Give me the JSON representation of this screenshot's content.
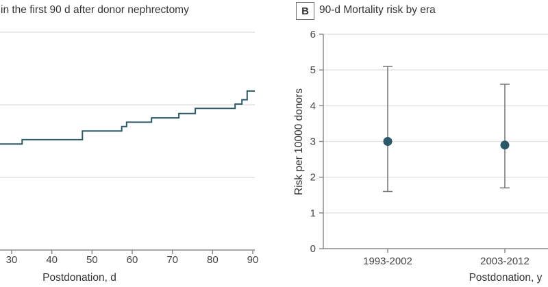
{
  "figure": {
    "panel_a": {
      "title": "in the first 90 d after donor nephrectomy",
      "xlabel": "Postdonation, d",
      "x_tick_labels": [
        "30",
        "40",
        "50",
        "60",
        "70",
        "80",
        "90"
      ]
    },
    "panel_b": {
      "badge": "B",
      "title": "90-d Mortality risk by era",
      "ylabel": "Risk per 10000 donors",
      "xlabel": "Postdonation, y",
      "y_tick_labels": [
        "0",
        "1",
        "2",
        "3",
        "4",
        "5",
        "6"
      ],
      "x_tick_labels": [
        "1993-2002",
        "2003-2012"
      ]
    }
  },
  "chart_data": [
    {
      "panel": "A",
      "type": "line",
      "subtype": "step",
      "title": "in the first 90 d after donor nephrectomy",
      "xlabel": "Postdonation, d",
      "x_ticks": [
        30,
        40,
        50,
        60,
        70,
        80,
        90
      ],
      "xlim_visible": [
        27.1,
        90.5
      ],
      "ylim_visible": [
        0,
        3.44
      ],
      "y_gridlines": [
        1,
        2,
        3
      ],
      "grid": true,
      "units": "cumulative deaths per 10000 donors (y-axis labels cropped off-screen left)",
      "steps_day_value": [
        [
          27.1,
          1.46
        ],
        [
          32.6,
          1.52
        ],
        [
          47.6,
          1.64
        ],
        [
          57.4,
          1.7
        ],
        [
          58.6,
          1.76
        ],
        [
          64.8,
          1.82
        ],
        [
          71.6,
          1.88
        ],
        [
          75.7,
          1.95
        ],
        [
          85.6,
          2.01
        ],
        [
          87.3,
          2.07
        ],
        [
          88.6,
          2.19
        ],
        [
          90.5,
          2.19
        ]
      ]
    },
    {
      "panel": "B",
      "type": "scatter",
      "title": "90-d Mortality risk by era",
      "xlabel": "Postdonation, y",
      "ylabel": "Risk per 10000 donors",
      "ylim": [
        0,
        6
      ],
      "y_ticks": [
        0,
        1,
        2,
        3,
        4,
        5,
        6
      ],
      "grid": true,
      "categories": [
        "1993-2002",
        "2003-2012"
      ],
      "values": [
        3.0,
        2.9
      ],
      "ci_low": [
        1.6,
        1.7
      ],
      "ci_high": [
        5.1,
        4.6
      ]
    }
  ],
  "colors": {
    "series_teal": "#2D5868",
    "error_bar": "#757575",
    "gridline": "#e4e4e4",
    "axis": "#8c8c8c",
    "tick_text": "#444444",
    "title_text": "#333333"
  }
}
